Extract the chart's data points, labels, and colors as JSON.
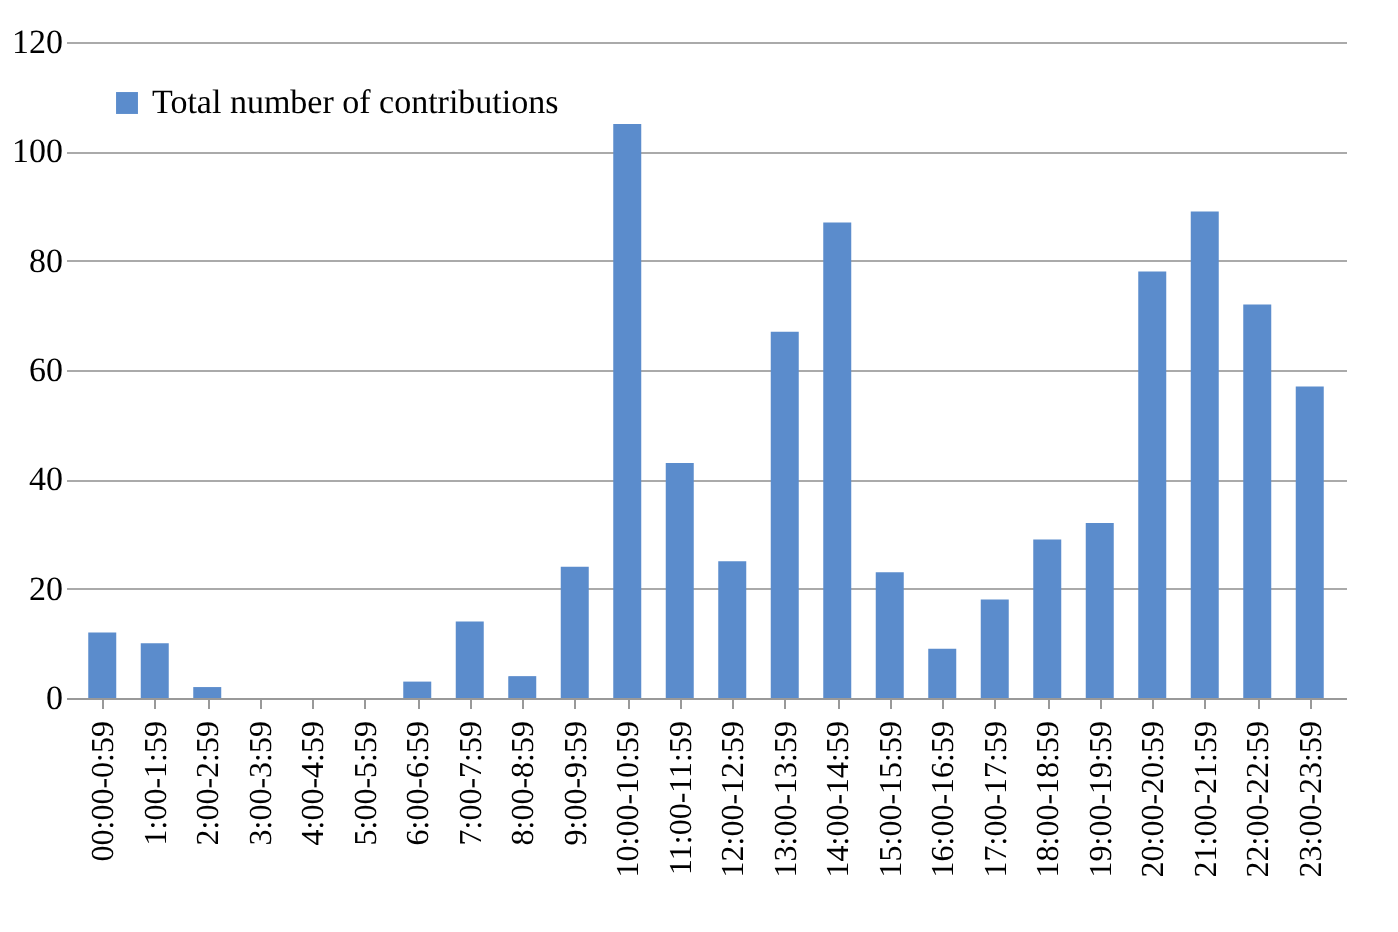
{
  "chart_data": {
    "type": "bar",
    "categories": [
      "00:00-0:59",
      "1:00-1:59",
      "2:00-2:59",
      "3:00-3:59",
      "4:00-4:59",
      "5:00-5:59",
      "6:00-6:59",
      "7:00-7:59",
      "8:00-8:59",
      "9:00-9:59",
      "10:00-10:59",
      "11:00-11:59",
      "12:00-12:59",
      "13:00-13:59",
      "14:00-14:59",
      "15:00-15:59",
      "16:00-16:59",
      "17:00-17:59",
      "18:00-18:59",
      "19:00-19:59",
      "20:00-20:59",
      "21:00-21:59",
      "22:00-22:59",
      "23:00-23:59"
    ],
    "series": [
      {
        "name": "Total number of contributions",
        "color": "#5b8ccc",
        "values": [
          12,
          10,
          2,
          0,
          0,
          0,
          3,
          14,
          4,
          24,
          105,
          43,
          25,
          67,
          87,
          23,
          9,
          18,
          29,
          32,
          78,
          89,
          72,
          57
        ]
      }
    ],
    "ylim": [
      0,
      120
    ],
    "yticks": [
      0,
      20,
      40,
      60,
      80,
      100,
      120
    ],
    "grid": "y",
    "legend": "top left"
  }
}
